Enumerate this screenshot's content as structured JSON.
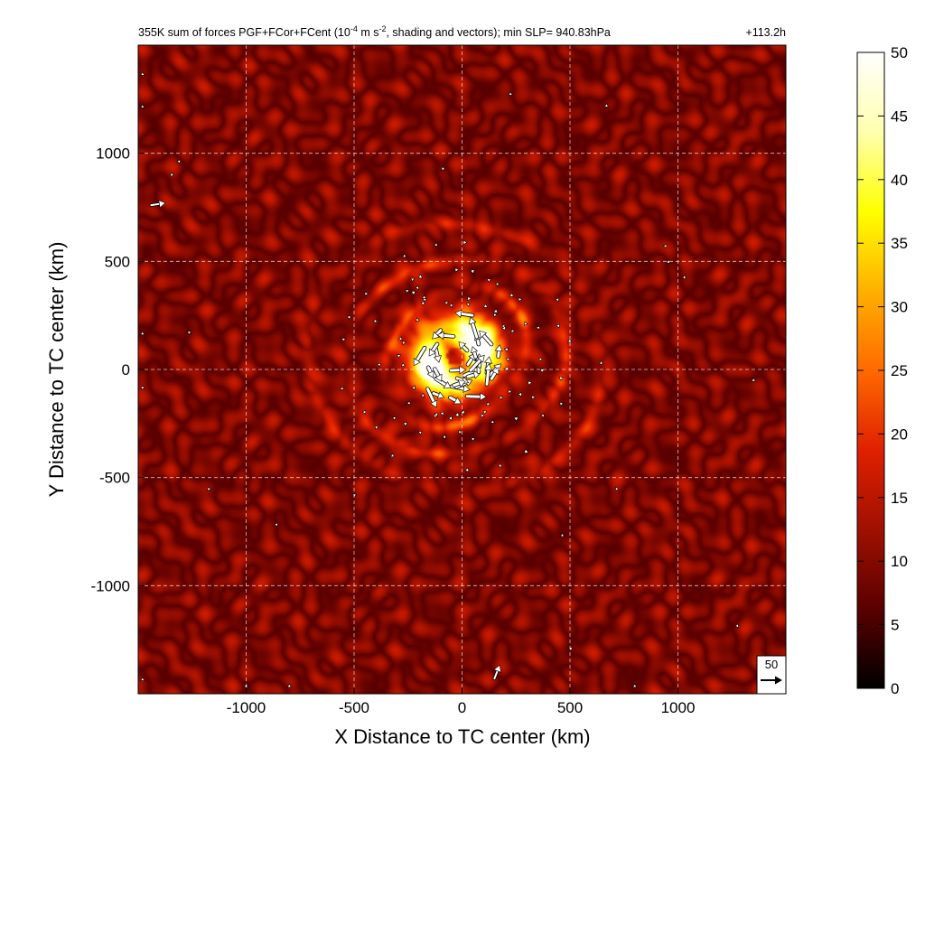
{
  "chart_data": {
    "type": "heatmap",
    "title": "355K sum of forces PGF+FCor+FCent (10",
    "title_sup": "-4",
    "title_mid": " m s",
    "title_sup2": "-2",
    "title_end": ", shading and vectors); min SLP= 940.83hPa",
    "time_label": "+113.2h",
    "xlabel": "X Distance to TC center (km)",
    "ylabel": "Y Distance to TC center (km)",
    "xlim": [
      -1500,
      1500
    ],
    "ylim": [
      -1500,
      1500
    ],
    "xticks": [
      -1000,
      -500,
      0,
      500,
      1000
    ],
    "xtick_labels": [
      "-1000",
      "-500",
      "0",
      "500",
      "1000"
    ],
    "yticks": [
      -1000,
      -500,
      0,
      500,
      1000
    ],
    "ytick_labels": [
      "-1000",
      "-500",
      "0",
      "500",
      "1000"
    ],
    "grid": true,
    "colorbar": {
      "min": 0,
      "max": 50,
      "ticks": [
        0,
        5,
        10,
        15,
        20,
        25,
        30,
        35,
        40,
        45,
        50
      ],
      "tick_labels": [
        "0",
        "5",
        "10",
        "15",
        "20",
        "25",
        "30",
        "35",
        "40",
        "45",
        "50"
      ],
      "colormap": [
        "#000000",
        "#5a0000",
        "#a01000",
        "#e02000",
        "#ff6a00",
        "#ffb000",
        "#ffff00",
        "#ffffb0",
        "#ffffff"
      ]
    },
    "reference_vector": {
      "value": 50,
      "label": "50"
    },
    "field": {
      "center": [
        -30,
        60
      ],
      "core_radius_km": 220,
      "core_max": 50,
      "ring_radii_km": [
        320,
        480,
        650
      ],
      "background_mean": 9
    }
  }
}
